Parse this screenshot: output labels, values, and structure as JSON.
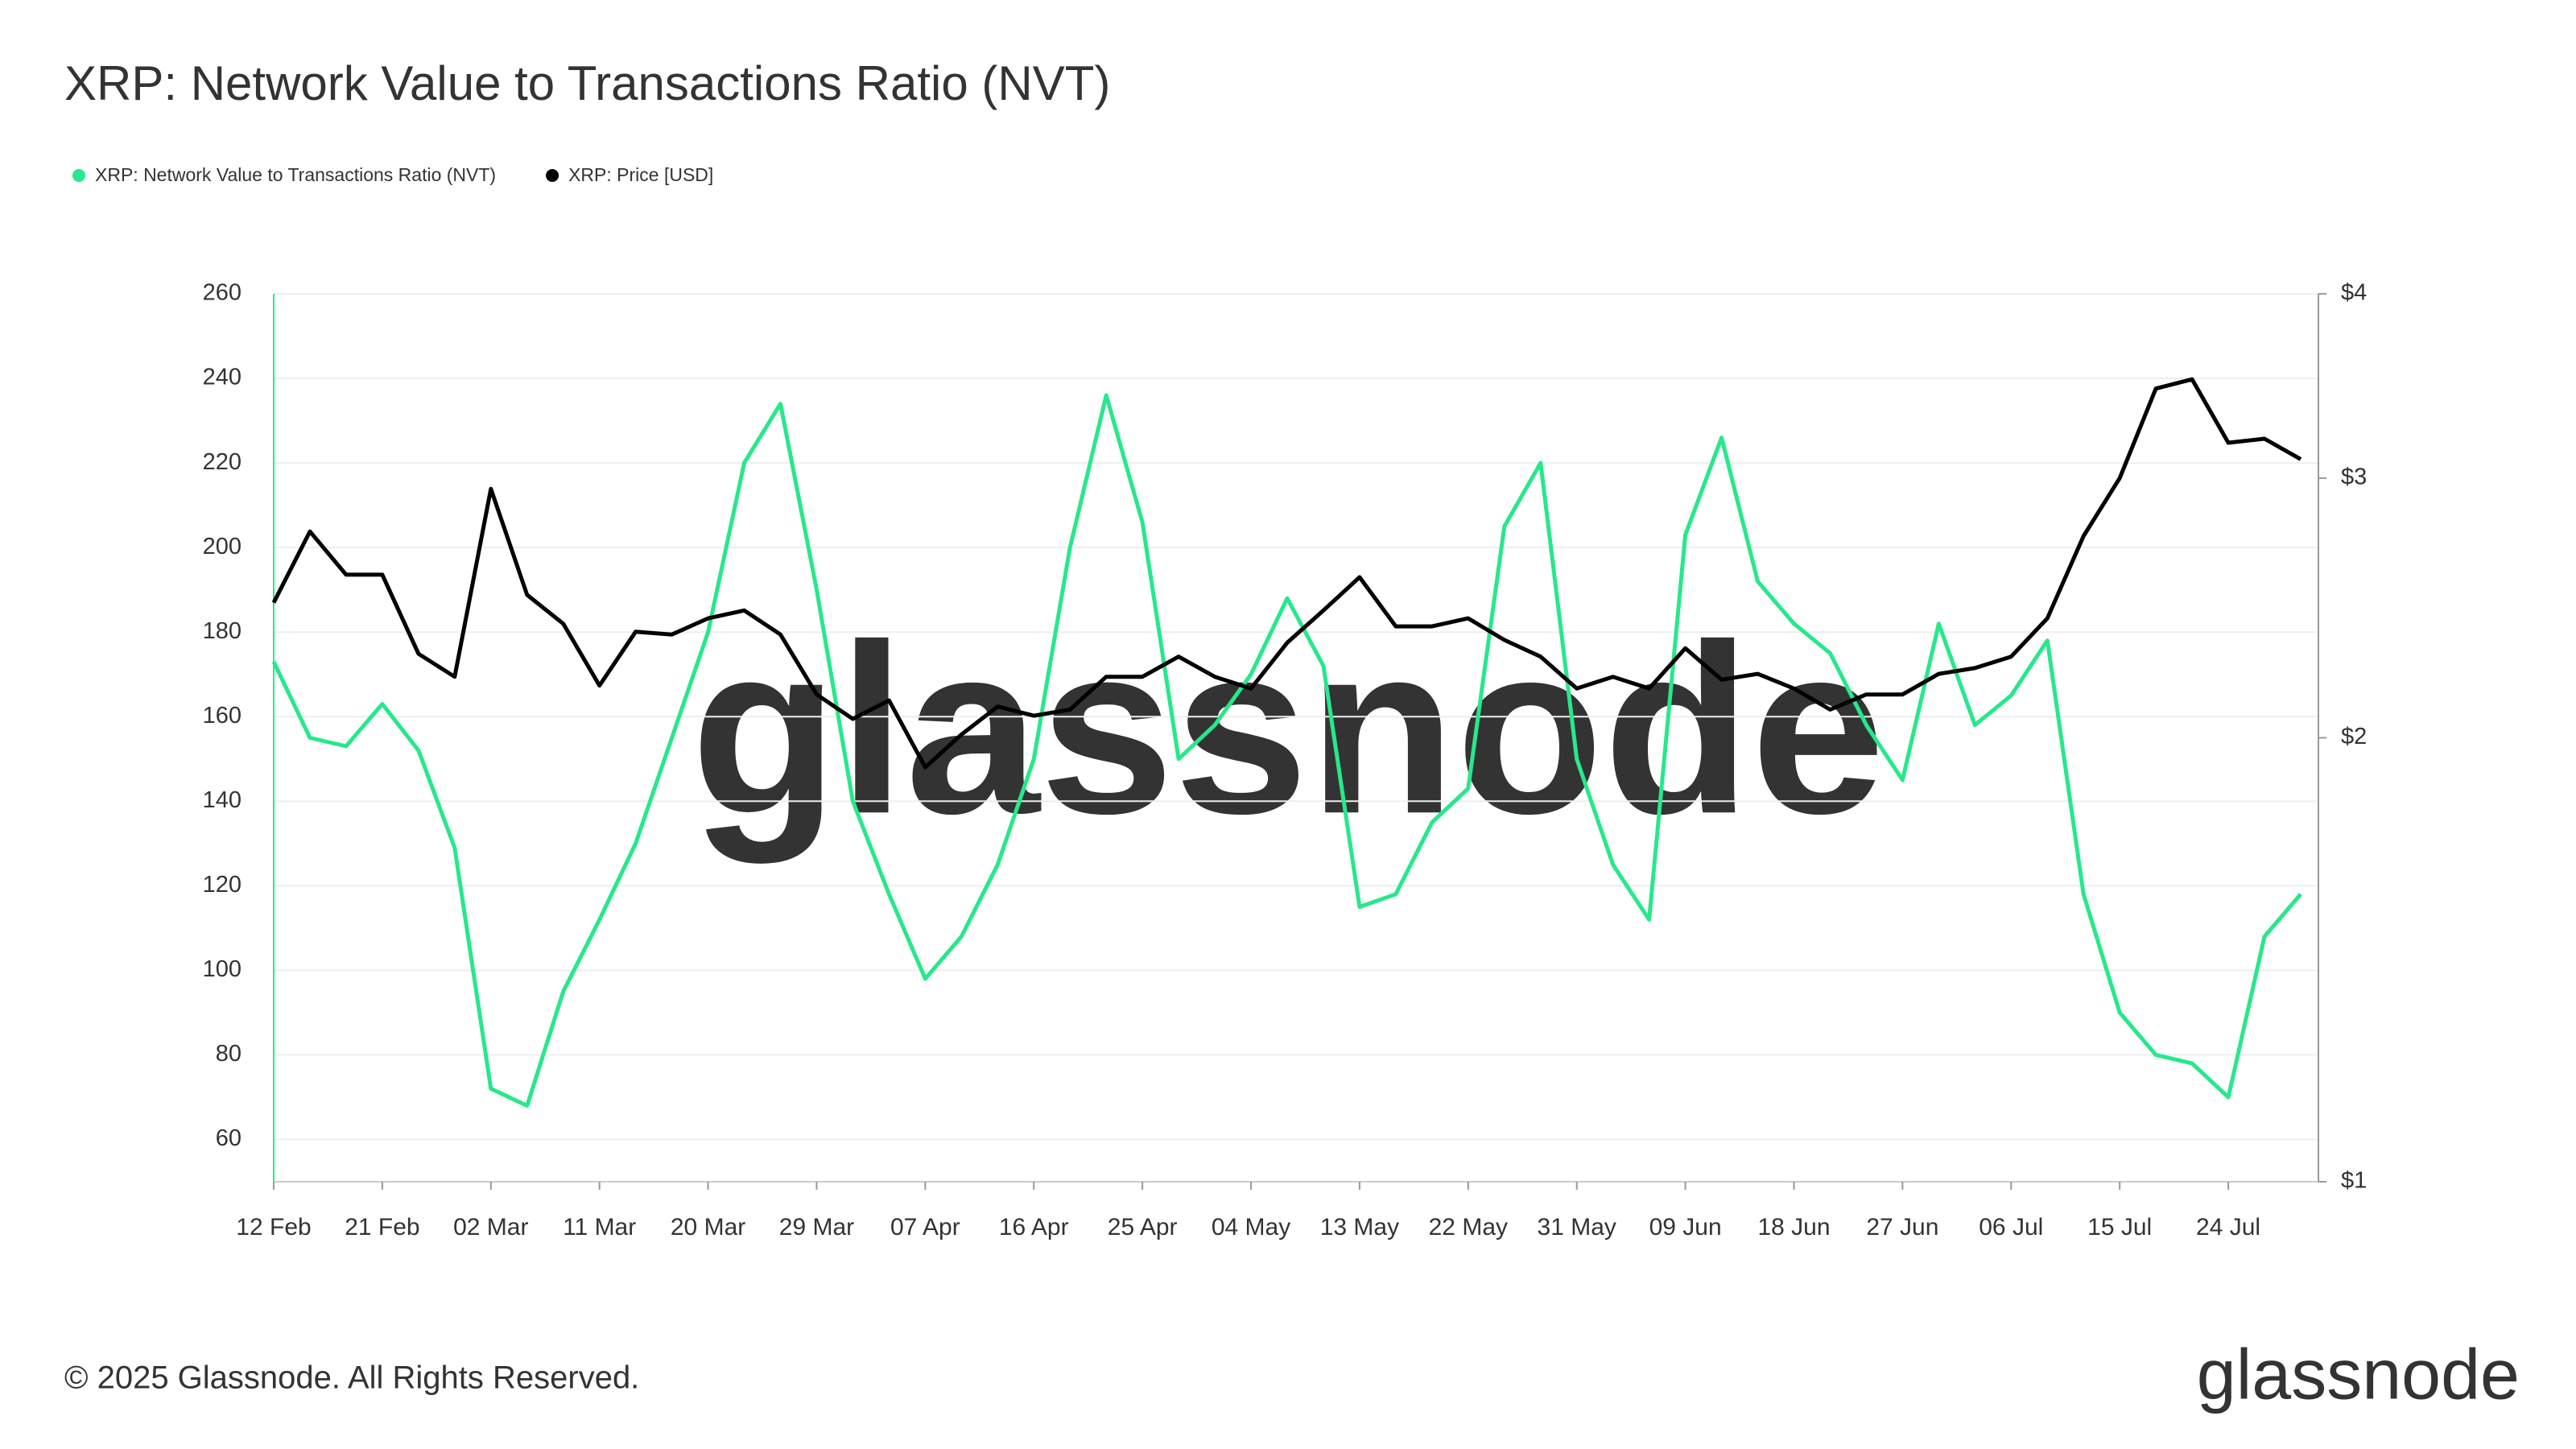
{
  "chart_data": {
    "type": "line",
    "title": "XRP: Network Value to Transactions Ratio (NVT)",
    "categories": [
      "12 Feb",
      null,
      null,
      "21 Feb",
      null,
      null,
      "02 Mar",
      null,
      null,
      "11 Mar",
      null,
      null,
      "20 Mar",
      null,
      null,
      "29 Mar",
      null,
      null,
      "07 Apr",
      null,
      null,
      "16 Apr",
      null,
      null,
      "25 Apr",
      null,
      null,
      "04 May",
      null,
      null,
      "13 May",
      null,
      null,
      "22 May",
      null,
      null,
      "31 May",
      null,
      null,
      "09 Jun",
      null,
      null,
      "18 Jun",
      null,
      null,
      "27 Jun",
      null,
      null,
      "06 Jul",
      null,
      null,
      "15 Jul",
      null,
      null,
      "24 Jul",
      null,
      null
    ],
    "series": [
      {
        "name": "XRP: Network Value to Transactions Ratio (NVT)",
        "color": "#27e88a",
        "axis": "y",
        "values": [
          173,
          155,
          153,
          163,
          152,
          129,
          72,
          68,
          95,
          112,
          130,
          155,
          180,
          220,
          234,
          190,
          140,
          118,
          98,
          108,
          125,
          150,
          200,
          236,
          206,
          150,
          158,
          170,
          188,
          172,
          115,
          118,
          135,
          143,
          205,
          220,
          150,
          125,
          112,
          203,
          226,
          192,
          182,
          175,
          158,
          145,
          182,
          158,
          165,
          178,
          118,
          90,
          80,
          78,
          70,
          108,
          118
        ]
      },
      {
        "name": "XRP: Price [USD]",
        "color": "#000000",
        "axis": "y2",
        "values": [
          2.47,
          2.76,
          2.58,
          2.58,
          2.28,
          2.2,
          2.95,
          2.5,
          2.39,
          2.17,
          2.36,
          2.35,
          2.41,
          2.44,
          2.35,
          2.14,
          2.06,
          2.12,
          1.91,
          2.01,
          2.1,
          2.07,
          2.09,
          2.2,
          2.2,
          2.27,
          2.2,
          2.16,
          2.32,
          2.44,
          2.57,
          2.38,
          2.38,
          2.41,
          2.33,
          2.27,
          2.16,
          2.2,
          2.16,
          2.3,
          2.19,
          2.21,
          2.16,
          2.09,
          2.14,
          2.14,
          2.21,
          2.23,
          2.27,
          2.41,
          2.74,
          3.0,
          3.45,
          3.5,
          3.17,
          3.19,
          3.09
        ]
      }
    ],
    "ylim": [
      50,
      260
    ],
    "yticks": [
      60,
      80,
      100,
      120,
      140,
      160,
      180,
      200,
      220,
      240,
      260
    ],
    "y2lim": [
      1,
      4
    ],
    "y2log": true,
    "y2ticks": [
      {
        "value": 1,
        "label": "$1"
      },
      {
        "value": 2,
        "label": "$2"
      },
      {
        "value": 3,
        "label": "$3"
      },
      {
        "value": 4,
        "label": "$4"
      }
    ],
    "grid": true,
    "legend": "top-left"
  },
  "footer": {
    "copyright": "© 2025 Glassnode. All Rights Reserved.",
    "logo": "glassnode"
  }
}
